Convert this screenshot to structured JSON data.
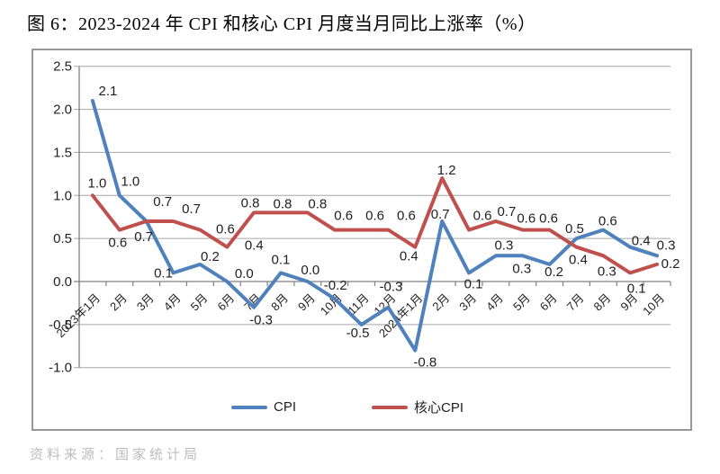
{
  "page": {
    "title": "图 6：2023-2024 年 CPI 和核心 CPI 月度当月同比上涨率（%）",
    "source": "资料来源：国家统计局"
  },
  "chart_data": {
    "type": "line",
    "title": "2023-2024 年 CPI 和核心 CPI 月度当月同比上涨率（%）",
    "categories": [
      "2023年1月",
      "2月",
      "3月",
      "4月",
      "5月",
      "6月",
      "7月",
      "8月",
      "9月",
      "10月",
      "11月",
      "12月",
      "2024年1月",
      "2月",
      "3月",
      "4月",
      "5月",
      "6月",
      "7月",
      "8月",
      "9月",
      "10月"
    ],
    "series": [
      {
        "name": "CPI",
        "color": "#4F81BD",
        "values": [
          2.1,
          1.0,
          0.7,
          0.1,
          0.2,
          0.0,
          -0.3,
          0.1,
          0.0,
          -0.2,
          -0.5,
          -0.3,
          -0.8,
          0.7,
          0.1,
          0.3,
          0.3,
          0.2,
          0.5,
          0.6,
          0.4,
          0.3
        ]
      },
      {
        "name": "核心CPI",
        "color": "#C0504D",
        "values": [
          1.0,
          0.6,
          0.7,
          0.7,
          0.6,
          0.4,
          0.8,
          0.8,
          0.8,
          0.6,
          0.6,
          0.6,
          0.4,
          1.2,
          0.6,
          0.7,
          0.6,
          0.6,
          0.4,
          0.3,
          0.1,
          0.2
        ]
      }
    ],
    "ylim": [
      -1.0,
      2.5
    ],
    "ytick_step": 0.5,
    "ytick_labels": [
      "2.5",
      "2.0",
      "1.5",
      "1.0",
      "0.5",
      "0.0",
      "-0.5",
      "-1.0"
    ],
    "grid": true,
    "grid_color": "#A6A6A6",
    "axis_color": "#808080",
    "label_color": "#1f1f1f",
    "data_labels": true,
    "legend_position": "bottom"
  }
}
